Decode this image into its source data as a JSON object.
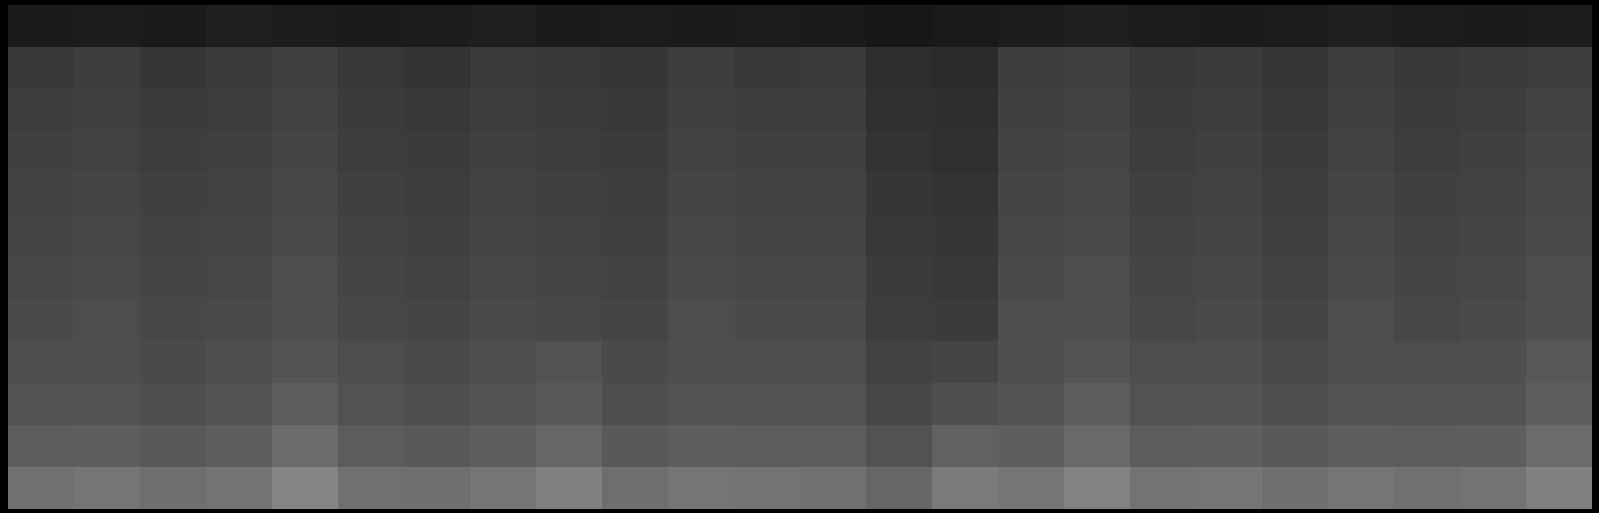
{
  "chart_data": {
    "type": "heatmap",
    "tick_labels": false,
    "zlim": [
      0,
      100
    ],
    "cells": [
      [
        10,
        11,
        10,
        12,
        11,
        10,
        11,
        12,
        10,
        11,
        10,
        11,
        10,
        9,
        10,
        11,
        12,
        11,
        10,
        11,
        12,
        11,
        10,
        11
      ],
      [
        22,
        24,
        21,
        23,
        25,
        22,
        20,
        23,
        22,
        21,
        24,
        22,
        23,
        18,
        17,
        24,
        25,
        22,
        23,
        21,
        24,
        22,
        23,
        24
      ],
      [
        24,
        25,
        23,
        24,
        26,
        23,
        22,
        24,
        23,
        22,
        25,
        24,
        24,
        19,
        18,
        25,
        26,
        23,
        24,
        22,
        25,
        23,
        24,
        26
      ],
      [
        25,
        26,
        24,
        25,
        27,
        24,
        23,
        25,
        24,
        23,
        26,
        25,
        25,
        20,
        19,
        26,
        27,
        24,
        25,
        23,
        26,
        24,
        25,
        27
      ],
      [
        26,
        27,
        25,
        26,
        28,
        25,
        24,
        26,
        25,
        24,
        27,
        26,
        26,
        21,
        20,
        27,
        28,
        25,
        26,
        24,
        27,
        25,
        26,
        28
      ],
      [
        27,
        28,
        26,
        27,
        29,
        26,
        25,
        27,
        26,
        25,
        28,
        27,
        27,
        22,
        21,
        28,
        29,
        26,
        27,
        25,
        28,
        26,
        27,
        29
      ],
      [
        28,
        29,
        27,
        28,
        30,
        27,
        26,
        28,
        27,
        26,
        29,
        28,
        28,
        23,
        22,
        29,
        30,
        27,
        28,
        26,
        29,
        27,
        28,
        30
      ],
      [
        29,
        30,
        28,
        29,
        31,
        28,
        27,
        29,
        28,
        27,
        30,
        29,
        29,
        24,
        23,
        30,
        31,
        28,
        29,
        27,
        30,
        28,
        29,
        31
      ],
      [
        30,
        31,
        29,
        31,
        33,
        30,
        29,
        31,
        32,
        29,
        31,
        30,
        30,
        26,
        27,
        31,
        33,
        30,
        31,
        29,
        31,
        30,
        31,
        34
      ],
      [
        32,
        33,
        31,
        33,
        36,
        32,
        31,
        33,
        35,
        31,
        33,
        32,
        32,
        28,
        31,
        33,
        36,
        32,
        33,
        31,
        33,
        32,
        33,
        37
      ],
      [
        36,
        37,
        35,
        37,
        42,
        36,
        35,
        37,
        40,
        35,
        37,
        36,
        36,
        32,
        38,
        37,
        41,
        36,
        37,
        35,
        37,
        36,
        37,
        42
      ],
      [
        44,
        46,
        43,
        45,
        52,
        44,
        43,
        46,
        50,
        43,
        46,
        45,
        44,
        40,
        48,
        46,
        51,
        45,
        46,
        43,
        46,
        44,
        45,
        50
      ]
    ]
  }
}
